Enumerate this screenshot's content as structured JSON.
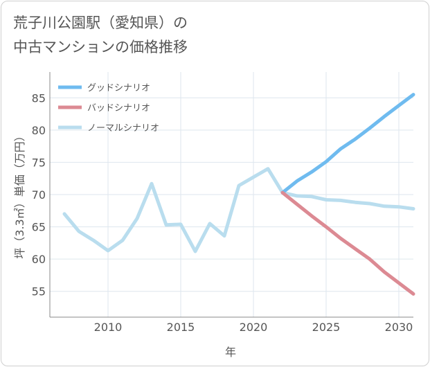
{
  "title": {
    "line1": "荒子川公園駅（愛知県）の",
    "line2": "中古マンションの価格推移"
  },
  "chart_data": {
    "type": "line",
    "title": "荒子川公園駅（愛知県）の中古マンションの価格推移",
    "xlabel": "年",
    "ylabel": "坪（3.3㎡）単価（万円）",
    "xlim": [
      2006,
      2031
    ],
    "ylim": [
      51,
      89
    ],
    "xticks": [
      2010,
      2015,
      2020,
      2025,
      2030
    ],
    "yticks": [
      55,
      60,
      65,
      70,
      75,
      80,
      85
    ],
    "legend_position": "top-left",
    "series": [
      {
        "name": "グッドシナリオ",
        "color": "#6fbbef",
        "x": [
          2022,
          2023,
          2024,
          2025,
          2026,
          2027,
          2028,
          2029,
          2030,
          2031
        ],
        "y": [
          70.3,
          72.1,
          73.5,
          75.1,
          77.1,
          78.6,
          80.3,
          82.1,
          83.8,
          85.5
        ]
      },
      {
        "name": "バッドシナリオ",
        "color": "#dc8a93",
        "x": [
          2022,
          2023,
          2024,
          2025,
          2026,
          2027,
          2028,
          2029,
          2030,
          2031
        ],
        "y": [
          70.3,
          68.5,
          66.7,
          65.0,
          63.2,
          61.6,
          60.0,
          58.0,
          56.3,
          54.6
        ]
      },
      {
        "name": "ノーマルシナリオ",
        "color": "#b9ddee",
        "x": [
          2007,
          2008,
          2009,
          2010,
          2011,
          2012,
          2013,
          2014,
          2015,
          2016,
          2017,
          2018,
          2019,
          2020,
          2021,
          2022,
          2023,
          2024,
          2025,
          2026,
          2027,
          2028,
          2029,
          2030,
          2031
        ],
        "y": [
          67.0,
          64.3,
          62.9,
          61.3,
          62.9,
          66.3,
          71.7,
          65.3,
          65.4,
          61.2,
          65.5,
          63.6,
          71.4,
          72.7,
          74.0,
          70.3,
          69.8,
          69.7,
          69.2,
          69.1,
          68.8,
          68.6,
          68.2,
          68.1,
          67.8
        ]
      }
    ]
  }
}
